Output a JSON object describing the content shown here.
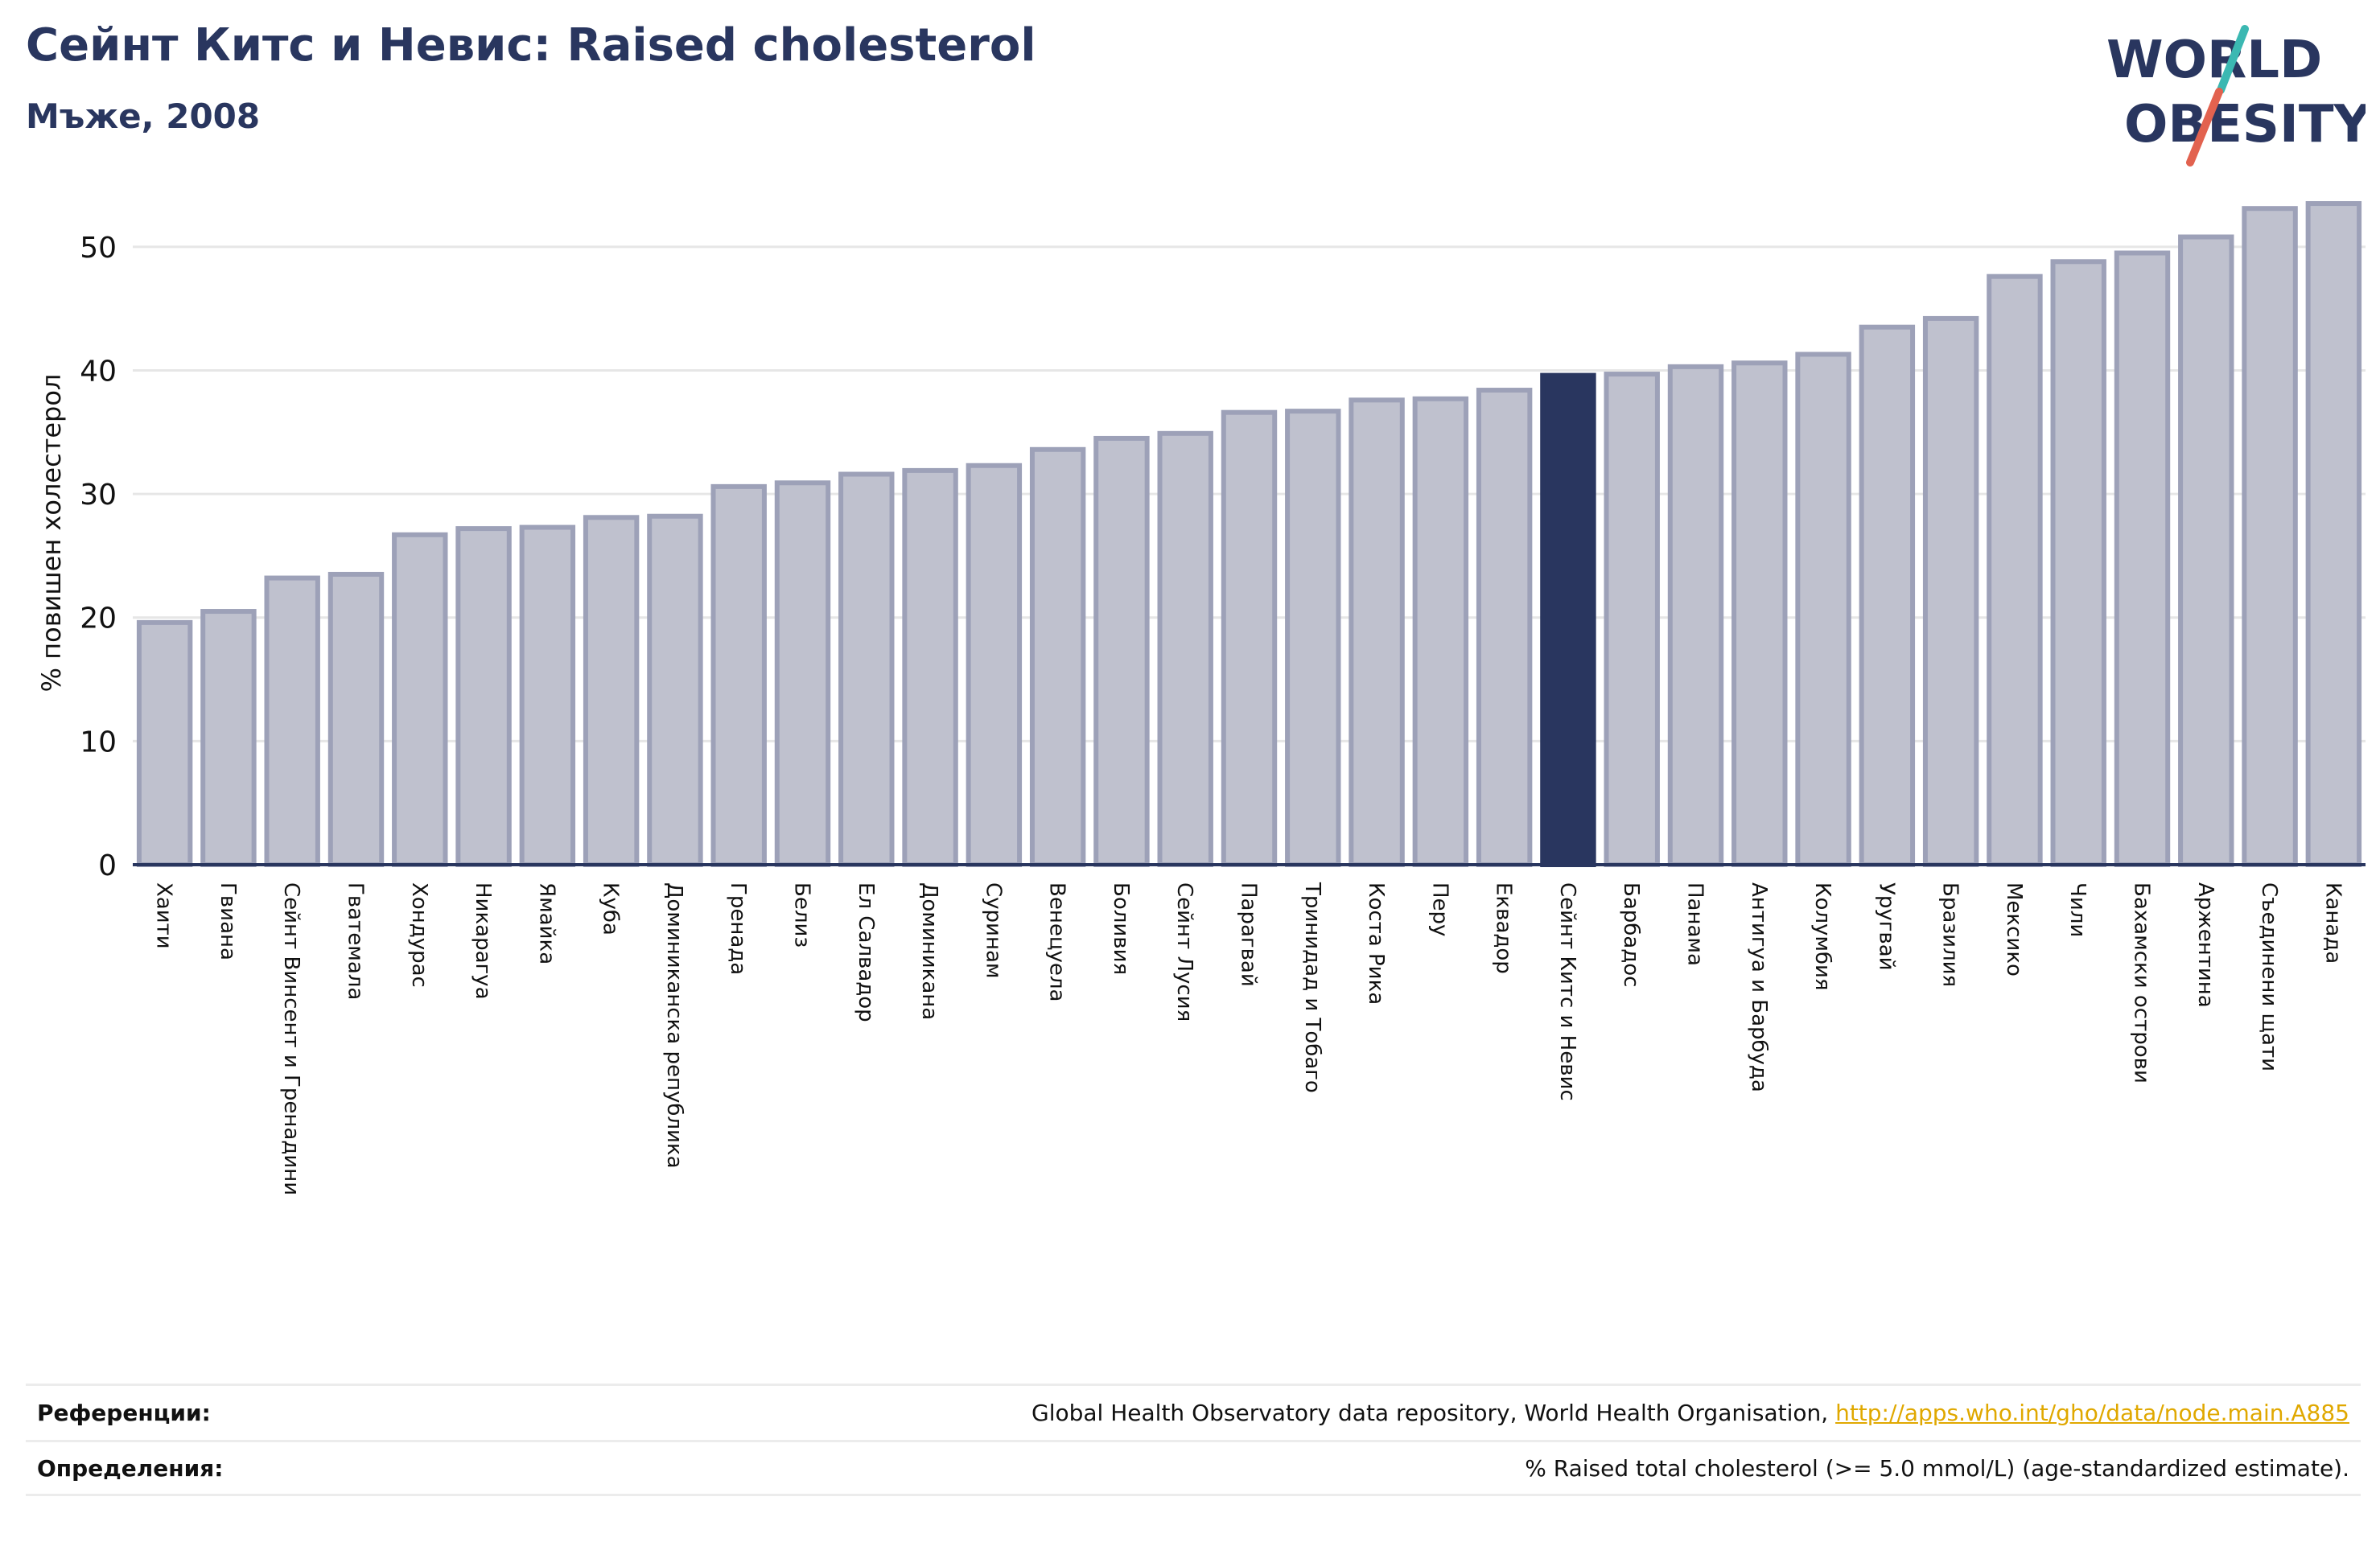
{
  "header": {
    "title": "Сейнт Китс и Невис: Raised cholesterol",
    "subtitle": "Мъже, 2008"
  },
  "logo": {
    "line1": "WORLD",
    "line2": "OBESITY",
    "text_color": "#29365f",
    "accent_teal": "#3bb8b2",
    "accent_red": "#e2624f"
  },
  "colors": {
    "bar": "#bfc1ce",
    "bar_border": "#9da1b8",
    "highlight": "#29365f",
    "gridline": "#e6e6e6"
  },
  "chart_data": {
    "type": "bar",
    "ylabel": "% повишен холестерол",
    "xlabel": "",
    "ylim": [
      0,
      55
    ],
    "yticks": [
      0,
      10,
      20,
      30,
      40,
      50
    ],
    "grid": true,
    "highlight_category": "Сейнт Китс и Невис",
    "categories": [
      "Хаити",
      "Гвиана",
      "Сейнт Винсент и Гренадини",
      "Гватемала",
      "Хондурас",
      "Никарагуа",
      "Ямайка",
      "Куба",
      "Доминиканска република",
      "Гренада",
      "Белиз",
      "Ел Салвадор",
      "Доминикана",
      "Суринам",
      "Венецуела",
      "Боливия",
      "Сейнт Лусия",
      "Парагвай",
      "Тринидад и Тобаго",
      "Коста Рика",
      "Перу",
      "Еквадор",
      "Сейнт Китс и Невис",
      "Барбадос",
      "Панама",
      "Антигуа и Барбуда",
      "Колумбия",
      "Уругвай",
      "Бразилия",
      "Мексико",
      "Чили",
      "Бахамски острови",
      "Аржентина",
      "Съединени щати",
      "Канада"
    ],
    "values": [
      19.6,
      20.5,
      23.2,
      23.5,
      26.7,
      27.2,
      27.3,
      28.1,
      28.2,
      30.6,
      30.9,
      31.6,
      31.9,
      32.3,
      33.6,
      34.5,
      34.9,
      36.6,
      36.7,
      37.6,
      37.7,
      38.4,
      39.6,
      39.7,
      40.3,
      40.6,
      41.3,
      43.5,
      44.2,
      47.6,
      48.8,
      49.5,
      50.8,
      53.1,
      53.5
    ]
  },
  "footer": {
    "references_label": "Референции:",
    "references_text": "Global Health Observatory data repository, World Health Organisation,",
    "references_link": "http://apps.who.int/gho/data/node.main.A885",
    "definitions_label": "Определения:",
    "definitions_text": "% Raised total cholesterol (>= 5.0 mmol/L) (age-standardized estimate)."
  }
}
